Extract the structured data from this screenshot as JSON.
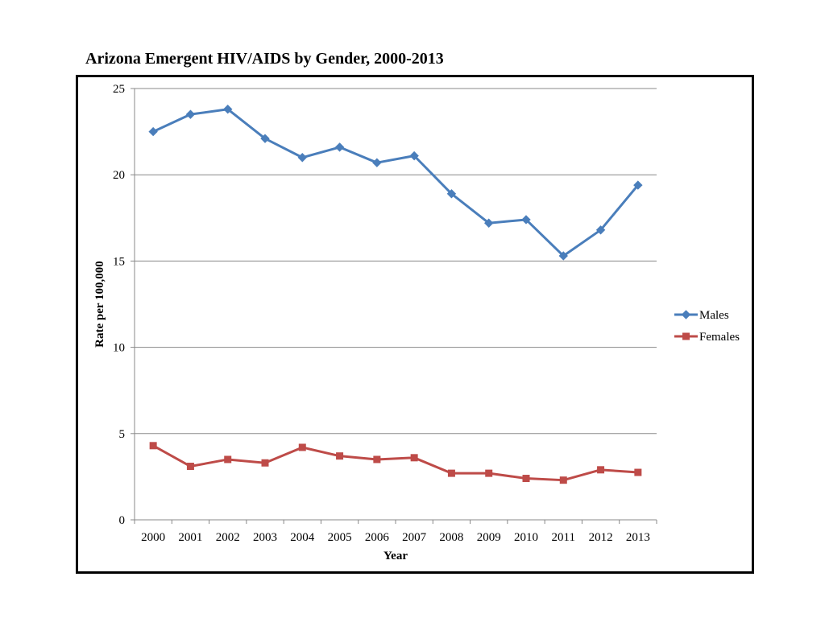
{
  "chart_data": {
    "type": "line",
    "title": "Arizona Emergent HIV/AIDS by Gender, 2000-2013",
    "xlabel": "Year",
    "ylabel": "Rate per 100,000",
    "categories": [
      "2000",
      "2001",
      "2002",
      "2003",
      "2004",
      "2005",
      "2006",
      "2007",
      "2008",
      "2009",
      "2010",
      "2011",
      "2012",
      "2013"
    ],
    "ylim": [
      0,
      25
    ],
    "yticks": [
      0,
      5,
      10,
      15,
      20,
      25
    ],
    "grid": true,
    "legend_position": "right",
    "series": [
      {
        "name": "Males",
        "color": "#4a7ebb",
        "marker": "diamond",
        "values": [
          22.5,
          23.5,
          23.8,
          22.1,
          21.0,
          21.6,
          20.7,
          21.1,
          18.9,
          17.2,
          17.4,
          15.3,
          16.8,
          19.4
        ]
      },
      {
        "name": "Females",
        "color": "#be4b48",
        "marker": "square",
        "values": [
          4.3,
          3.1,
          3.5,
          3.3,
          4.2,
          3.7,
          3.5,
          3.6,
          2.7,
          2.7,
          2.4,
          2.3,
          2.9,
          2.75
        ]
      }
    ]
  }
}
